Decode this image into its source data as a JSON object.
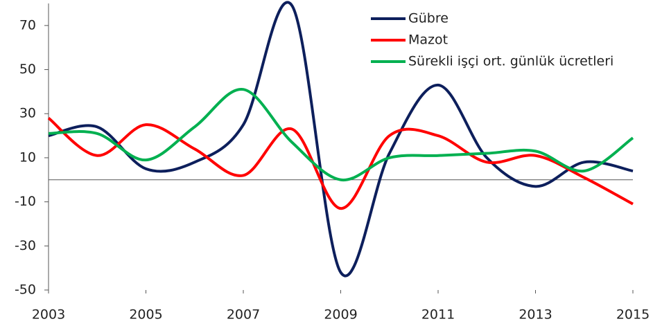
{
  "chart_data": {
    "type": "line",
    "x": [
      2003,
      2004,
      2005,
      2006,
      2007,
      2008,
      2009,
      2010,
      2011,
      2012,
      2013,
      2014,
      2015
    ],
    "series": [
      {
        "name": "Gübre",
        "color": "#0d1f5c",
        "values": [
          20,
          24,
          5,
          8,
          25,
          79,
          -42,
          12,
          43,
          10,
          -3,
          8,
          4
        ]
      },
      {
        "name": "Mazot",
        "color": "#ff0000",
        "values": [
          28,
          11,
          25,
          14,
          2,
          23,
          -13,
          20,
          20,
          8,
          11,
          1,
          -11
        ]
      },
      {
        "name": "Sürekli işçi ort. günlük ücretleri",
        "color": "#00b050",
        "values": [
          21,
          21,
          9,
          24,
          41,
          17,
          0,
          10,
          11,
          12,
          13,
          4,
          19
        ]
      }
    ],
    "xlim": [
      2003,
      2015
    ],
    "xticks": [
      2003,
      2005,
      2007,
      2009,
      2011,
      2013,
      2015
    ],
    "ylim": [
      -50,
      80
    ],
    "yticks": [
      -50,
      -30,
      -10,
      10,
      30,
      50,
      70
    ],
    "grid": false,
    "legend": "top-right",
    "smooth": true
  }
}
